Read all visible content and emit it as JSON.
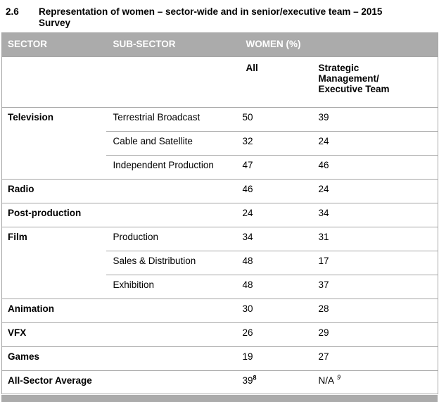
{
  "title": {
    "number": "2.6",
    "text": "Representation of women – sector-wide and in senior/executive team – 2015 Survey"
  },
  "colors": {
    "header_bg": "#ababab",
    "header_text": "#ffffff",
    "border": "#a6a6a6",
    "text": "#000000"
  },
  "table": {
    "headers": {
      "sector": "SECTOR",
      "sub_sector": "SUB-SECTOR",
      "women_pct": "WOMEN (%)"
    },
    "sub_headers": {
      "all": "All",
      "strategic": "Strategic\nManagement/\nExecutive Team"
    },
    "rows": [
      {
        "sector": "Television",
        "sub_sector": "Terrestrial Broadcast",
        "all": "50",
        "executive": "39"
      },
      {
        "sub_sector": "Cable and Satellite",
        "all": "32",
        "executive": "24"
      },
      {
        "sub_sector": "Independent Production",
        "all": "47",
        "executive": "46"
      },
      {
        "sector": "Radio",
        "sub_sector": "",
        "all": "46",
        "executive": "24"
      },
      {
        "sector": "Post-production",
        "sub_sector": "",
        "all": "24",
        "executive": "34"
      },
      {
        "sector": "Film",
        "sub_sector": "Production",
        "all": "34",
        "executive": "31"
      },
      {
        "sub_sector": "Sales & Distribution",
        "all": "48",
        "executive": "17"
      },
      {
        "sub_sector": "Exhibition",
        "all": "48",
        "executive": "37"
      },
      {
        "sector": "Animation",
        "sub_sector": "",
        "all": "30",
        "executive": "28"
      },
      {
        "sector": "VFX",
        "sub_sector": "",
        "all": "26",
        "executive": "29"
      },
      {
        "sector": "Games",
        "sub_sector": "",
        "all": "19",
        "executive": "27"
      },
      {
        "sector": "All-Sector Average",
        "sub_sector": "",
        "all": "39",
        "all_footnote": "8",
        "executive": "N/A",
        "executive_footnote": "9"
      }
    ]
  }
}
